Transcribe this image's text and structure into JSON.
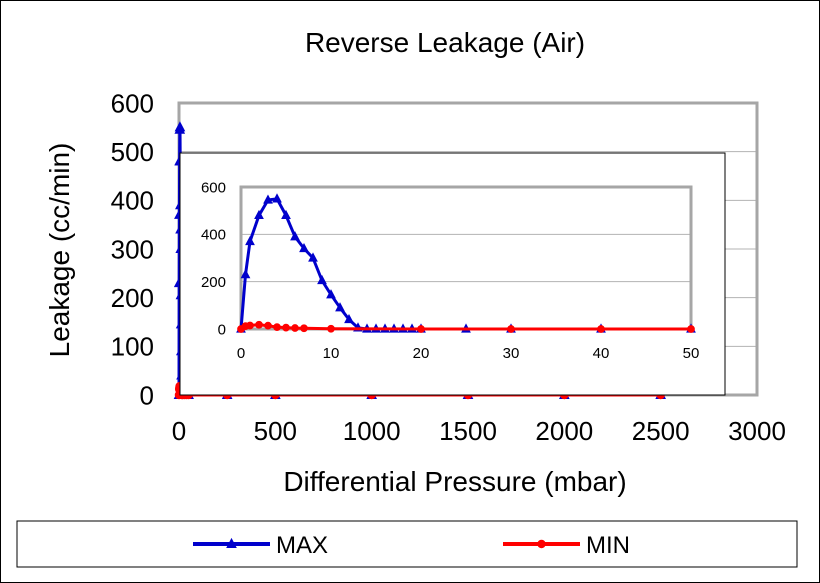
{
  "chart_data": [
    {
      "type": "line",
      "title": "Reverse Leakage (Air)",
      "xlabel": "Differential Pressure (mbar)",
      "ylabel": "Leakage (cc/min)",
      "xlim": [
        0,
        3000
      ],
      "ylim": [
        0,
        600
      ],
      "x_ticks": [
        0,
        500,
        1000,
        1500,
        2000,
        2500,
        3000
      ],
      "y_ticks": [
        0,
        100,
        200,
        300,
        400,
        500,
        600
      ],
      "grid": true,
      "legend_position": "bottom",
      "series": [
        {
          "name": "MAX",
          "color": "#0000CC",
          "marker": "triangle",
          "x": [
            0,
            1,
            2,
            3,
            4,
            5,
            6,
            7,
            8,
            9,
            10,
            11,
            12,
            13,
            14,
            15,
            16,
            17,
            18,
            19,
            20,
            25,
            30,
            40,
            50,
            250,
            500,
            1000,
            1500,
            2000,
            2500
          ],
          "y": [
            0,
            230,
            370,
            480,
            545,
            550,
            480,
            390,
            340,
            300,
            205,
            145,
            90,
            40,
            5,
            0,
            0,
            0,
            0,
            0,
            0,
            0,
            0,
            0,
            0,
            0,
            0,
            0,
            0,
            0,
            0
          ]
        },
        {
          "name": "MIN",
          "color": "#FF0000",
          "marker": "circle",
          "x": [
            0,
            1,
            2,
            3,
            4,
            5,
            6,
            7,
            8,
            9,
            10,
            15,
            20,
            30,
            40,
            50,
            250,
            500,
            1000,
            1500,
            2000,
            2500
          ],
          "y": [
            0,
            12,
            15,
            18,
            14,
            8,
            6,
            4,
            3,
            2,
            1,
            0,
            0,
            0,
            0,
            0,
            0,
            0,
            0,
            0,
            0,
            0
          ]
        }
      ]
    },
    {
      "type": "line",
      "title": "",
      "xlim": [
        0,
        50
      ],
      "ylim": [
        0,
        600
      ],
      "x_ticks": [
        0,
        10,
        20,
        30,
        40,
        50
      ],
      "y_ticks": [
        0,
        200,
        400,
        600
      ],
      "grid": true,
      "series": [
        {
          "name": "MAX",
          "color": "#0000CC",
          "marker": "triangle",
          "x": [
            0,
            0.5,
            1,
            2,
            3,
            4,
            5,
            6,
            7,
            8,
            9,
            10,
            11,
            12,
            13,
            14,
            15,
            16,
            17,
            18,
            19,
            20,
            25,
            30,
            40,
            50
          ],
          "y": [
            0,
            230,
            370,
            480,
            545,
            550,
            480,
            390,
            340,
            300,
            205,
            145,
            90,
            40,
            5,
            0,
            0,
            0,
            0,
            0,
            0,
            0,
            0,
            0,
            0,
            0
          ]
        },
        {
          "name": "MIN",
          "color": "#FF0000",
          "marker": "circle",
          "x": [
            0,
            0.5,
            1,
            2,
            3,
            4,
            5,
            6,
            7,
            10,
            20,
            30,
            40,
            50
          ],
          "y": [
            0,
            12,
            15,
            18,
            14,
            8,
            6,
            4,
            3,
            1,
            0,
            0,
            0,
            0
          ]
        }
      ]
    }
  ]
}
